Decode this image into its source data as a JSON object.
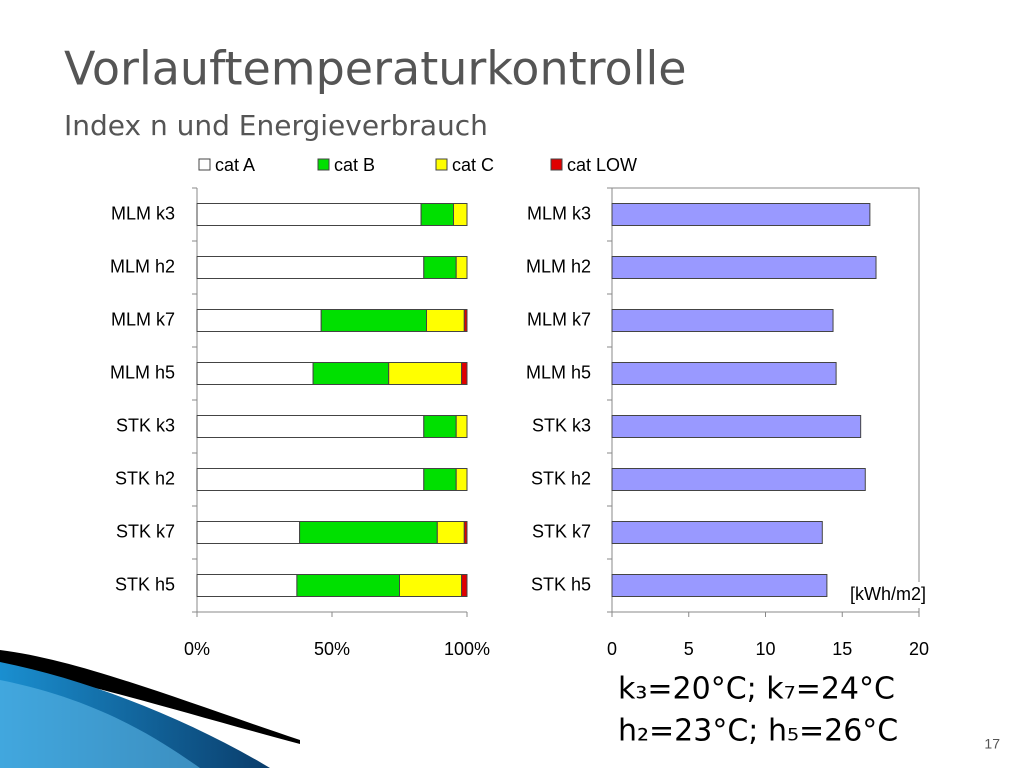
{
  "title": "Vorlauftemperaturkontrolle",
  "subtitle": "Index n und Energieverbrauch",
  "notes": [
    "k₃=20°C; k₇=24°C",
    "h₂=23°C; h₅=26°C"
  ],
  "page_number": "17",
  "chart_data": [
    {
      "type": "stacked_bar_horizontal",
      "categories": [
        "MLM k3",
        "MLM h2",
        "MLM k7",
        "MLM h5",
        "STK k3",
        "STK h2",
        "STK k7",
        "STK h5"
      ],
      "series": [
        {
          "name": "cat A",
          "color": "#ffffff",
          "values": [
            83,
            84,
            46,
            43,
            84,
            84,
            38,
            37
          ]
        },
        {
          "name": "cat B",
          "color": "#00e000",
          "values": [
            12,
            12,
            39,
            28,
            12,
            12,
            51,
            38
          ]
        },
        {
          "name": "cat C",
          "color": "#ffff00",
          "values": [
            5,
            4,
            14,
            27,
            4,
            4,
            10,
            23
          ]
        },
        {
          "name": "cat LOW",
          "color": "#e00000",
          "values": [
            0,
            0,
            1,
            2,
            0,
            0,
            1,
            2
          ]
        }
      ],
      "xlim": [
        0,
        100
      ],
      "xticks": [
        {
          "value": 0,
          "label": "0%"
        },
        {
          "value": 50,
          "label": "50%"
        },
        {
          "value": 100,
          "label": "100%"
        }
      ],
      "legend": "top"
    },
    {
      "type": "bar_horizontal",
      "categories": [
        "MLM k3",
        "MLM h2",
        "MLM k7",
        "MLM h5",
        "STK k3",
        "STK h2",
        "STK k7",
        "STK h5"
      ],
      "values": [
        16.8,
        17.2,
        14.4,
        14.6,
        16.2,
        16.5,
        13.7,
        14.0
      ],
      "color": "#9999ff",
      "xlim": [
        0,
        20
      ],
      "xticks": [
        0,
        5,
        10,
        15,
        20
      ],
      "annotation": "[kWh/m2]"
    }
  ]
}
